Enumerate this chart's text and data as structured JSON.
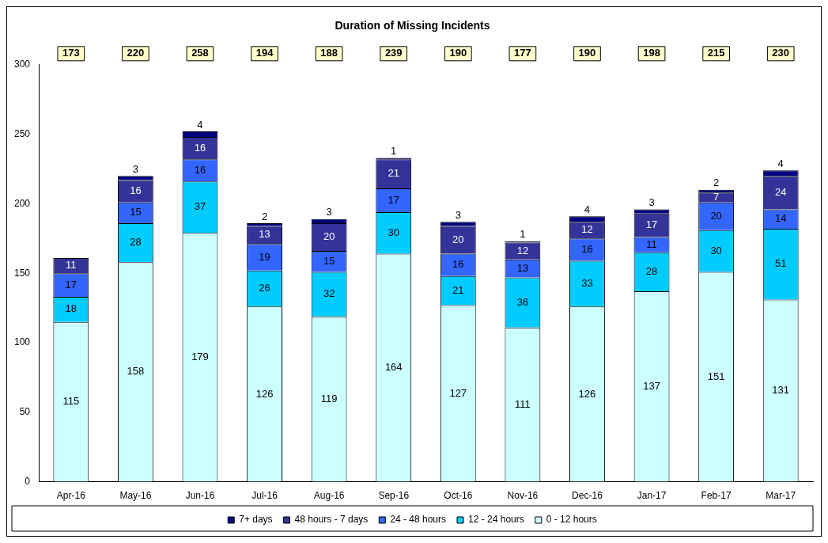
{
  "chart_data": {
    "type": "bar",
    "title": "Duration of Missing Incidents",
    "stacked": true,
    "categories": [
      "Apr-16",
      "May-16",
      "Jun-16",
      "Jul-16",
      "Aug-16",
      "Sep-16",
      "Oct-16",
      "Nov-16",
      "Dec-16",
      "Jan-17",
      "Feb-17",
      "Mar-17"
    ],
    "series": [
      {
        "name": "0 - 12 hours",
        "color": "#ccffff",
        "values": [
          115,
          158,
          179,
          126,
          119,
          164,
          127,
          111,
          126,
          137,
          151,
          131
        ]
      },
      {
        "name": "12 - 24 hours",
        "color": "#00ccff",
        "values": [
          18,
          28,
          37,
          26,
          32,
          30,
          21,
          36,
          33,
          28,
          30,
          51
        ]
      },
      {
        "name": "24 - 48 hours",
        "color": "#3366ff",
        "values": [
          17,
          15,
          16,
          19,
          15,
          17,
          16,
          13,
          16,
          11,
          20,
          14
        ]
      },
      {
        "name": "48 hours - 7 days",
        "color": "#333399",
        "values": [
          11,
          16,
          16,
          13,
          20,
          21,
          20,
          12,
          12,
          17,
          7,
          24
        ]
      },
      {
        "name": "7+ days",
        "color": "#000080",
        "values": [
          null,
          3,
          4,
          2,
          3,
          1,
          3,
          1,
          4,
          3,
          2,
          4
        ]
      }
    ],
    "annotations": [
      "173",
      "220",
      "258",
      "194",
      "188",
      "239",
      "190",
      "177",
      "190",
      "198",
      "215",
      "230"
    ],
    "ylim": [
      0,
      300
    ],
    "yticks": [
      0,
      50,
      100,
      150,
      200,
      250,
      300
    ],
    "grid": false,
    "legend": "bottom",
    "data_labels": true
  }
}
